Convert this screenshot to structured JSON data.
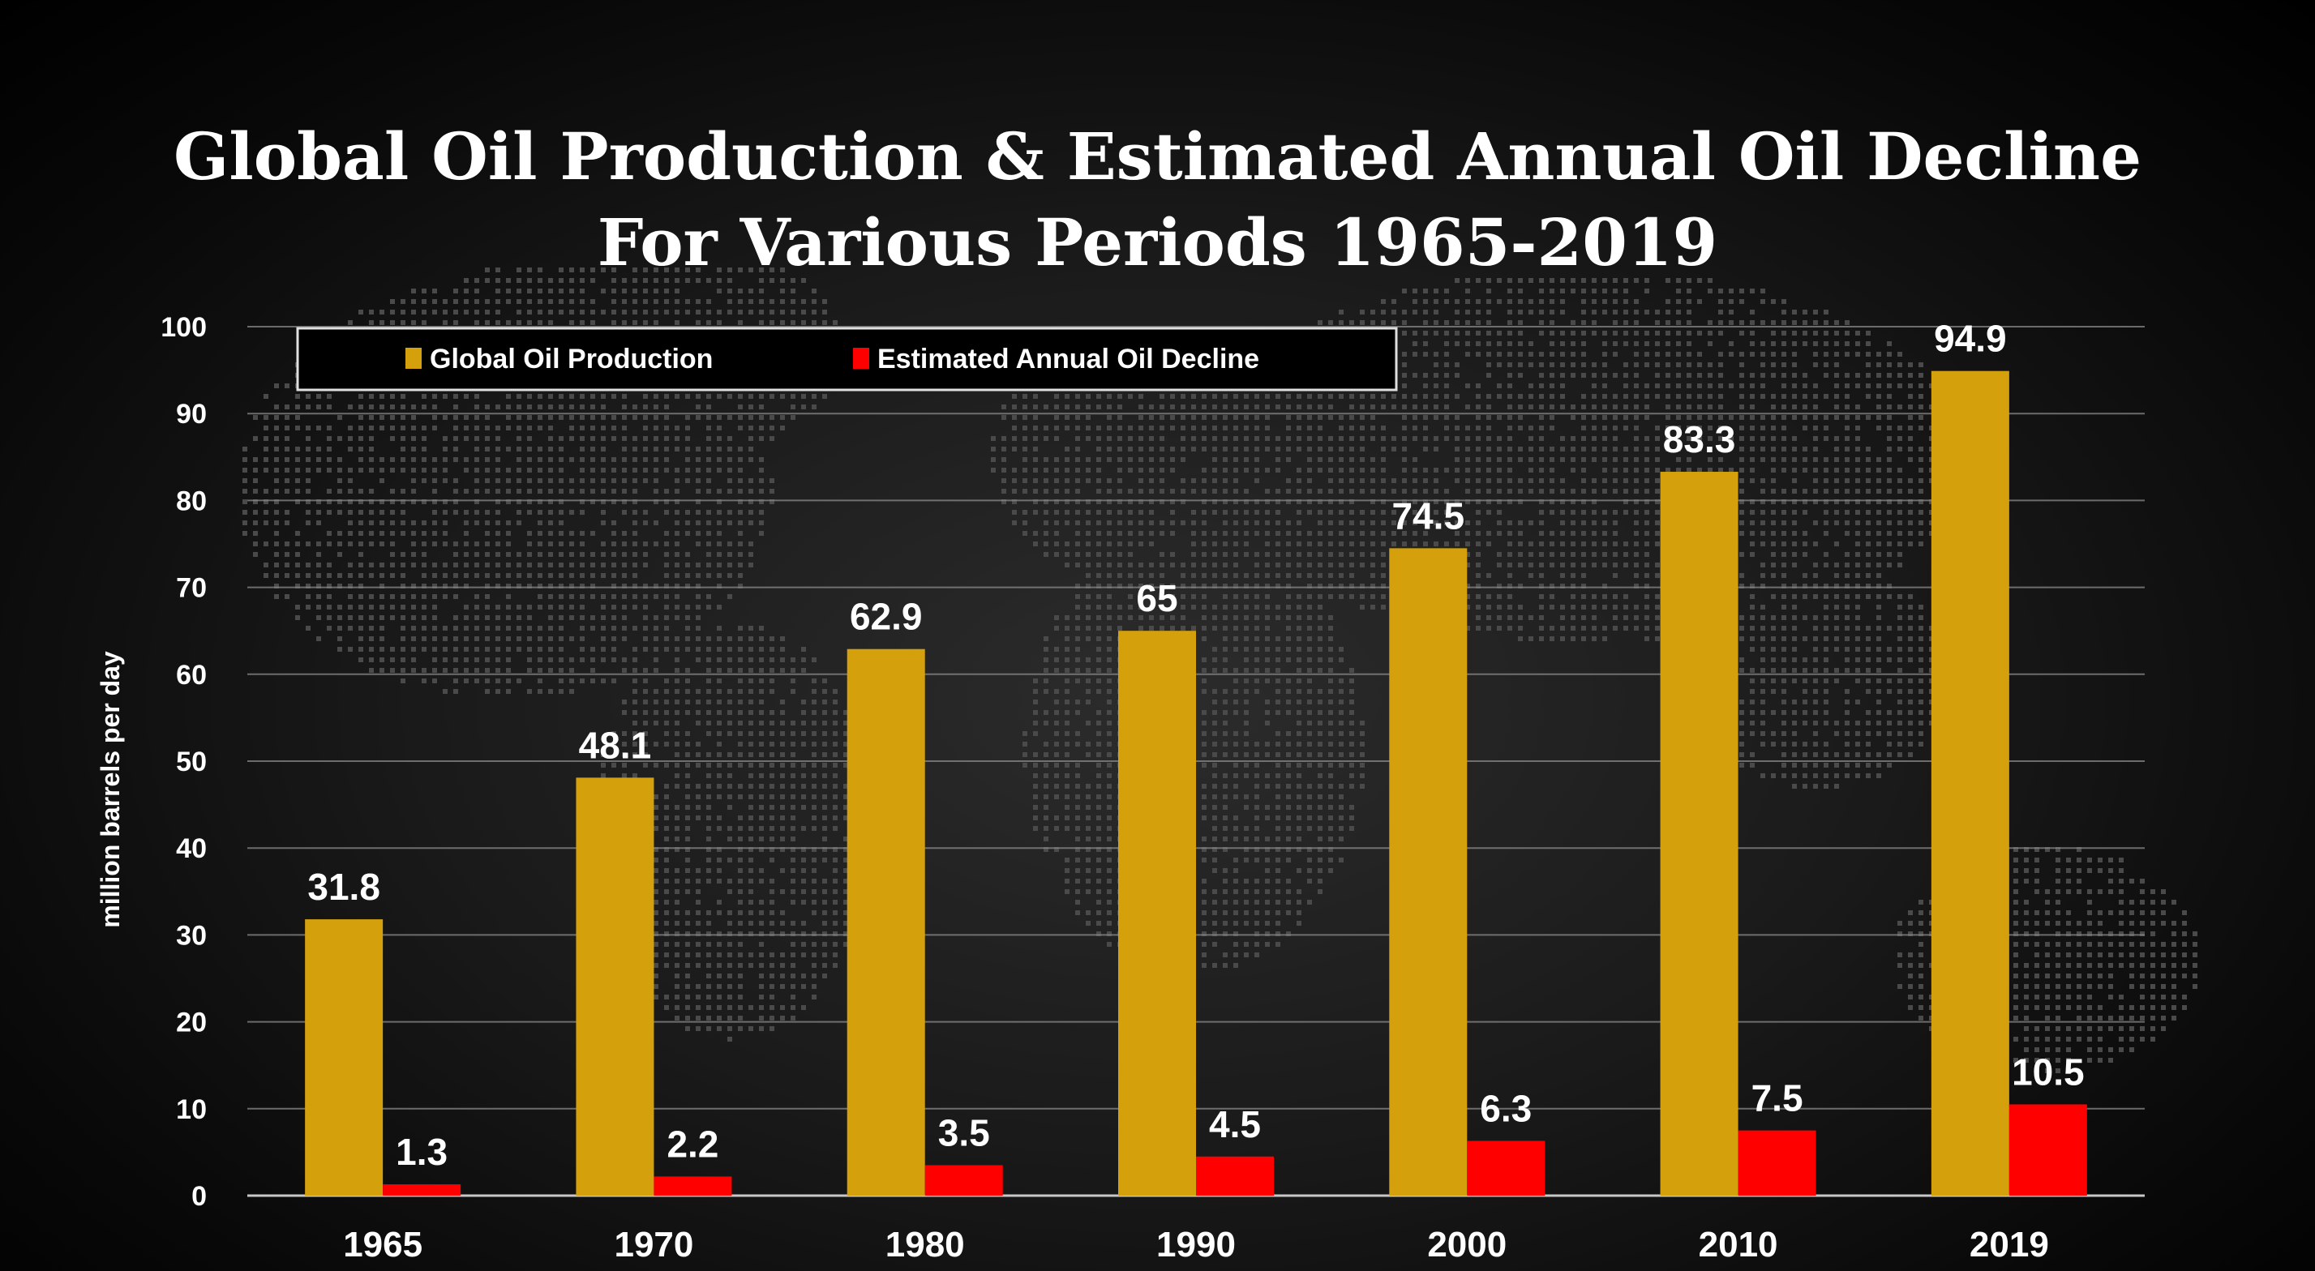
{
  "title": {
    "line1": "Global Oil Production & Estimated Annual Oil Decline",
    "line2": "For Various Periods 1965-2019"
  },
  "colors": {
    "background": "#000000",
    "production": "#D4A00C",
    "decline": "#FF0000",
    "text": "#FFFFFF",
    "grid": "#8A8A8A"
  },
  "chart_data": {
    "type": "bar",
    "title": "Global Oil Production & Estimated Annual Oil Decline For Various Periods 1965-2019",
    "xlabel": "",
    "ylabel": "million barrels per day",
    "ylim": [
      0,
      100
    ],
    "yticks": [
      0,
      10,
      20,
      30,
      40,
      50,
      60,
      70,
      80,
      90,
      100
    ],
    "grid": true,
    "legend": "top-left",
    "categories": [
      "1965",
      "1970",
      "1980",
      "1990",
      "2000",
      "2010",
      "2019"
    ],
    "series": [
      {
        "name": "Global Oil Production",
        "color": "#D4A00C",
        "values": [
          31.8,
          48.1,
          62.9,
          65,
          74.5,
          83.3,
          94.9
        ]
      },
      {
        "name": "Estimated Annual Oil Decline",
        "color": "#FF0000",
        "values": [
          1.3,
          2.2,
          3.5,
          4.5,
          6.3,
          7.5,
          10.5
        ]
      }
    ]
  }
}
